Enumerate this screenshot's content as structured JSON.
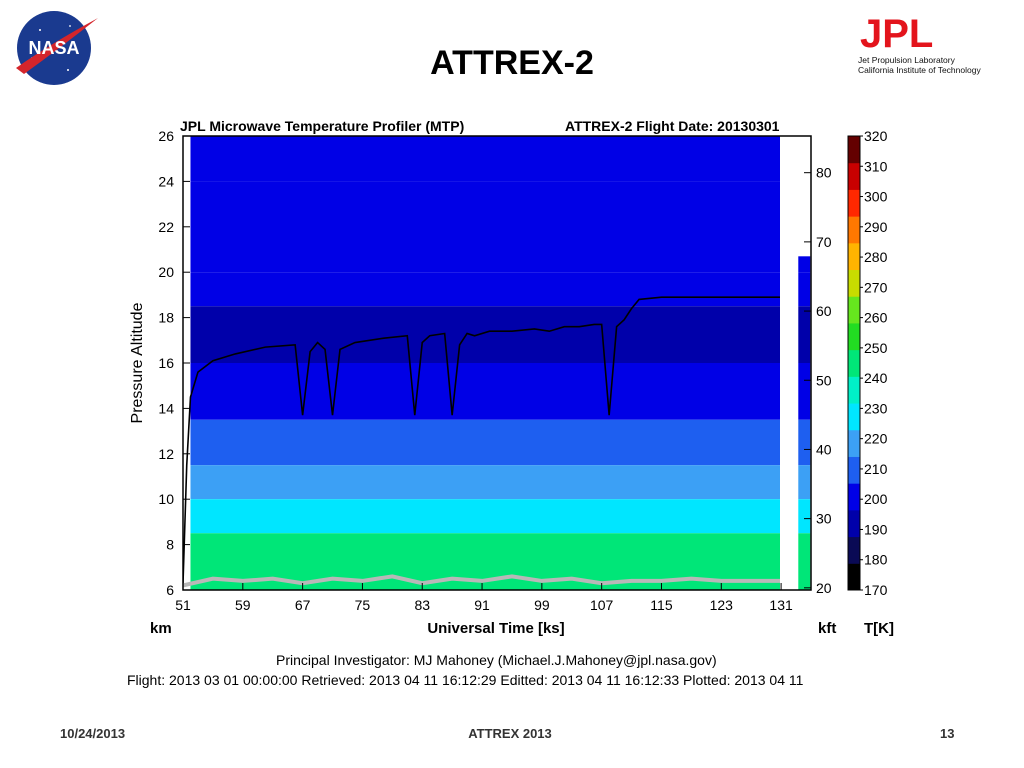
{
  "slide": {
    "title": "ATTREX-2",
    "footer_date": "10/24/2013",
    "footer_center": "ATTREX 2013",
    "footer_page": "13"
  },
  "logos": {
    "nasa_text": "NASA",
    "jpl_text": "JPL",
    "jpl_line1": "Jet Propulsion Laboratory",
    "jpl_line2": "California Institute of Technology",
    "nasa_colors": {
      "disc": "#1a3a8f",
      "swoosh": "#d4252b"
    },
    "jpl_color": "#e3141c"
  },
  "figure": {
    "header_left": "JPL Microwave Temperature Profiler (MTP)",
    "header_right": "ATTREX-2  Flight Date: 20130301",
    "km_unit": "km",
    "kft_unit": "kft",
    "colorbar_unit": "T[K]",
    "pi_line": "Principal Investigator: MJ Mahoney (Michael.J.Mahoney@jpl.nasa.gov)",
    "meta_line": "Flight: 2013 03 01 00:00:00   Retrieved: 2013 04 11 16:12:29   Editted: 2013 04 11 16:12:33   Plotted: 2013 04 11"
  },
  "chart_data": {
    "type": "heatmap",
    "title": "JPL Microwave Temperature Profiler (MTP)",
    "xlabel": "Universal Time [ks]",
    "ylabel": "Pressure Altitude",
    "xlim": [
      51,
      135
    ],
    "ylim": [
      6,
      26
    ],
    "xticks": [
      51,
      59,
      67,
      75,
      83,
      91,
      99,
      107,
      115,
      123,
      131
    ],
    "yticks": [
      6,
      8,
      10,
      12,
      14,
      16,
      18,
      20,
      22,
      24,
      26
    ],
    "kft_ticks": [
      20,
      30,
      40,
      50,
      60,
      70,
      80
    ],
    "colorbar": {
      "label": "T[K]",
      "ticks": [
        170,
        180,
        190,
        200,
        210,
        220,
        230,
        240,
        250,
        260,
        270,
        280,
        290,
        300,
        310,
        320
      ],
      "colors": [
        "#000000",
        "#0a0a55",
        "#0000aa",
        "#0000e6",
        "#1e5ff0",
        "#3ca0f5",
        "#00e6ff",
        "#00f0c8",
        "#00e678",
        "#22dd22",
        "#66e61e",
        "#c8dc00",
        "#ffb400",
        "#ff7800",
        "#ff2800",
        "#c80000",
        "#640000"
      ]
    },
    "temperature_bands": [
      {
        "alt_top": 26.0,
        "alt_bottom": 24.0,
        "temp_K": 207
      },
      {
        "alt_top": 24.0,
        "alt_bottom": 20.0,
        "temp_K": 205
      },
      {
        "alt_top": 20.0,
        "alt_bottom": 18.5,
        "temp_K": 200
      },
      {
        "alt_top": 18.5,
        "alt_bottom": 16.0,
        "temp_K": 194
      },
      {
        "alt_top": 16.0,
        "alt_bottom": 13.5,
        "temp_K": 202
      },
      {
        "alt_top": 13.5,
        "alt_bottom": 11.5,
        "temp_K": 212
      },
      {
        "alt_top": 11.5,
        "alt_bottom": 10.0,
        "temp_K": 222
      },
      {
        "alt_top": 10.0,
        "alt_bottom": 8.5,
        "temp_K": 232
      },
      {
        "alt_top": 8.5,
        "alt_bottom": 6.0,
        "temp_K": 250
      }
    ],
    "series": [
      {
        "style": "black line",
        "x": [
          51,
          51.5,
          52,
          53,
          55,
          58,
          62,
          66,
          67,
          68,
          69,
          70,
          71,
          72,
          74,
          78,
          81,
          82,
          83,
          84,
          86,
          87,
          88,
          89,
          90,
          92,
          95,
          98,
          100,
          102,
          104,
          106,
          107,
          108,
          109,
          110,
          111,
          112,
          115,
          120,
          125,
          131
        ],
        "y": [
          6.3,
          11.5,
          14.5,
          15.6,
          16.1,
          16.4,
          16.7,
          16.8,
          13.7,
          16.5,
          16.9,
          16.6,
          13.7,
          16.6,
          16.9,
          17.1,
          17.2,
          13.7,
          16.9,
          17.2,
          17.3,
          13.7,
          16.8,
          17.3,
          17.2,
          17.4,
          17.4,
          17.5,
          17.4,
          17.6,
          17.6,
          17.7,
          17.7,
          13.7,
          17.6,
          17.9,
          18.4,
          18.8,
          18.9,
          18.9,
          18.9,
          18.9
        ]
      },
      {
        "style": "gray line",
        "x": [
          51,
          55,
          59,
          63,
          67,
          71,
          75,
          79,
          83,
          87,
          91,
          95,
          99,
          103,
          107,
          111,
          115,
          119,
          123,
          127,
          131
        ],
        "y": [
          6.2,
          6.5,
          6.4,
          6.5,
          6.3,
          6.5,
          6.4,
          6.6,
          6.3,
          6.5,
          6.4,
          6.6,
          6.4,
          6.5,
          6.3,
          6.4,
          6.4,
          6.5,
          6.4,
          6.4,
          6.4
        ]
      }
    ]
  }
}
